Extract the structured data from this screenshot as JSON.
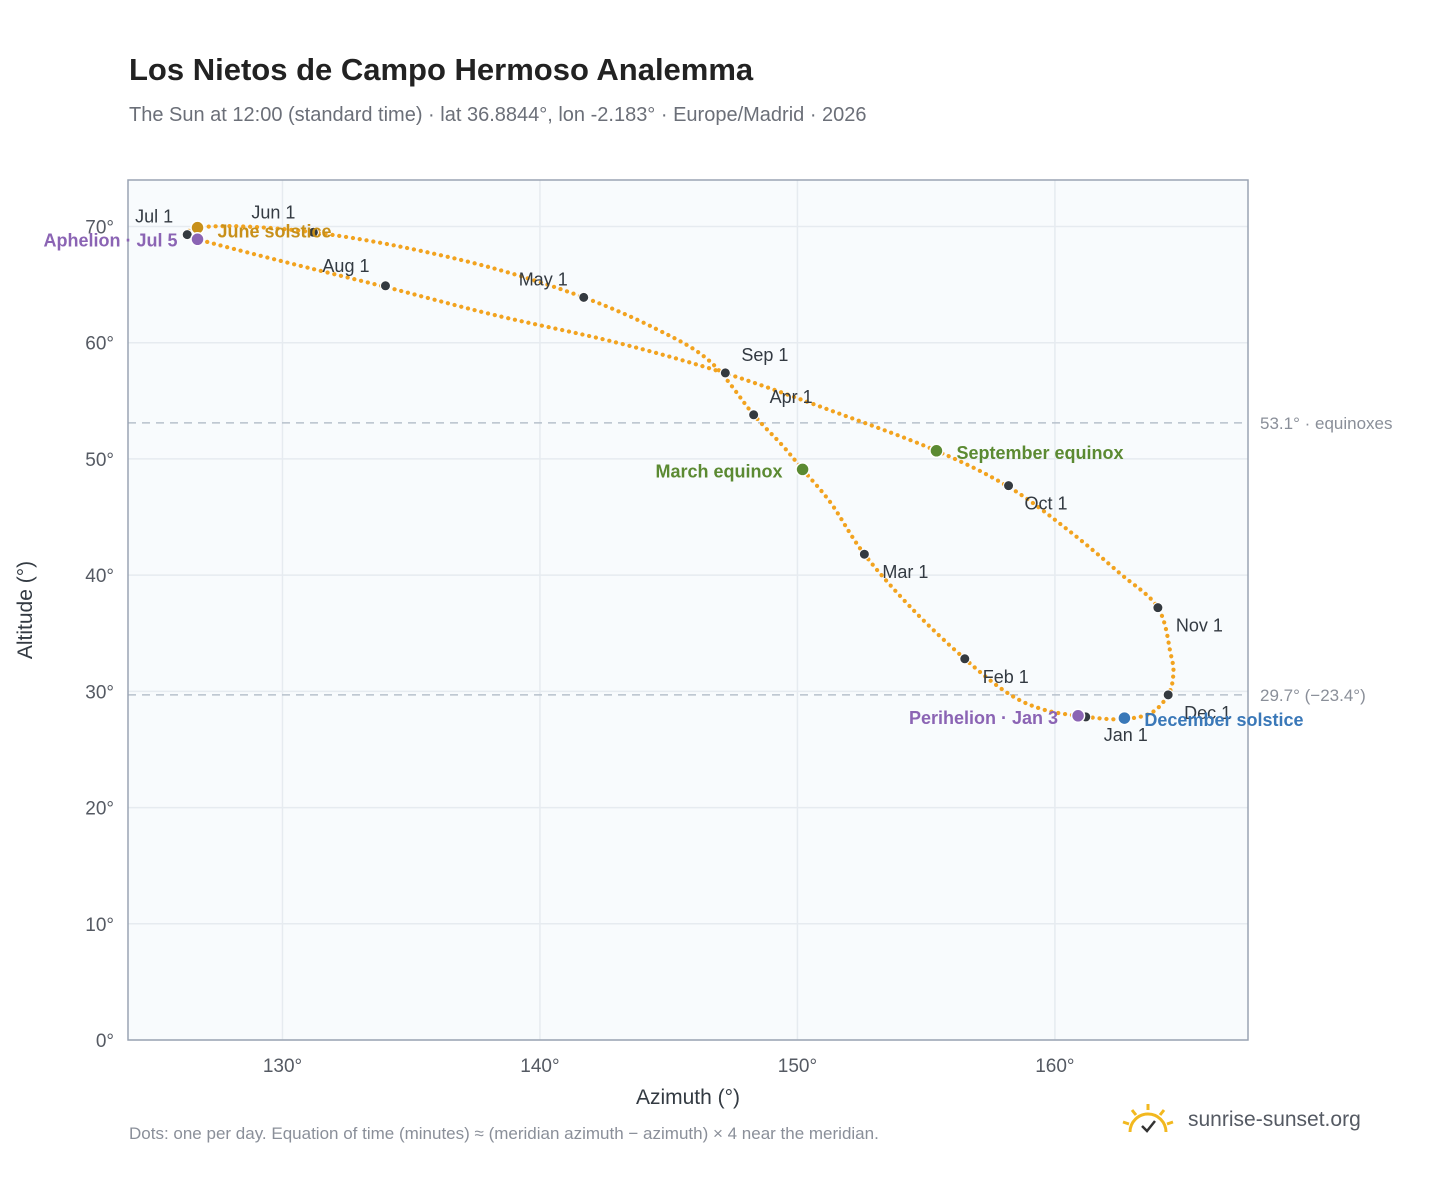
{
  "header": {
    "title": "Los Nietos de Campo Hermoso Analemma",
    "subtitle": "The Sun at 12:00 (standard time) · lat 36.8844°, lon -2.183° · Europe/Madrid · 2026"
  },
  "footer": {
    "note": "Dots: one per day. Equation of time (minutes) ≈ (meridian azimuth − azimuth) × 4 near the meridian.",
    "brand": "sunrise-sunset.org"
  },
  "chart_data": {
    "type": "scatter",
    "title": "Los Nietos de Campo Hermoso Analemma",
    "xlabel": "Azimuth (°)",
    "ylabel": "Altitude (°)",
    "xlim": [
      124,
      167.5
    ],
    "ylim": [
      0,
      74
    ],
    "xticks": [
      {
        "v": 130,
        "label": "130°"
      },
      {
        "v": 140,
        "label": "140°"
      },
      {
        "v": 150,
        "label": "150°"
      },
      {
        "v": 160,
        "label": "160°"
      }
    ],
    "yticks": [
      {
        "v": 0,
        "label": "0°"
      },
      {
        "v": 10,
        "label": "10°"
      },
      {
        "v": 20,
        "label": "20°"
      },
      {
        "v": 30,
        "label": "30°"
      },
      {
        "v": 40,
        "label": "40°"
      },
      {
        "v": 50,
        "label": "50°"
      },
      {
        "v": 60,
        "label": "60°"
      },
      {
        "v": 70,
        "label": "70°"
      }
    ],
    "grid": true,
    "reference_lines": [
      {
        "y": 53.1,
        "label": "53.1° · equinoxes"
      },
      {
        "y": 29.7,
        "label": "29.7° (−23.4°)"
      }
    ],
    "path": [
      [
        161.2,
        27.8
      ],
      [
        162.5,
        27.6
      ],
      [
        163.7,
        28.1
      ],
      [
        164.4,
        29.7
      ],
      [
        164.6,
        31.5
      ],
      [
        164.5,
        33.2
      ],
      [
        164.0,
        37.2
      ],
      [
        162.5,
        40.2
      ],
      [
        160.5,
        43.9
      ],
      [
        158.2,
        47.6
      ],
      [
        155.4,
        50.7
      ],
      [
        151.5,
        54.0
      ],
      [
        147.3,
        57.3
      ],
      [
        143.0,
        60.0
      ],
      [
        138.2,
        62.4
      ],
      [
        134.0,
        64.8
      ],
      [
        130.0,
        67.0
      ],
      [
        126.7,
        68.9
      ],
      [
        126.3,
        69.3
      ],
      [
        126.7,
        69.9
      ],
      [
        128.5,
        70.0
      ],
      [
        131.2,
        69.5
      ],
      [
        134.5,
        68.3
      ],
      [
        138.2,
        66.4
      ],
      [
        141.7,
        63.9
      ],
      [
        144.5,
        61.2
      ],
      [
        146.6,
        58.4
      ],
      [
        148.3,
        53.8
      ],
      [
        149.4,
        51.2
      ],
      [
        150.2,
        49.1
      ],
      [
        151.3,
        46.2
      ],
      [
        152.6,
        41.8
      ],
      [
        154.5,
        37.0
      ],
      [
        156.5,
        32.8
      ],
      [
        158.2,
        29.8
      ],
      [
        159.6,
        28.4
      ],
      [
        161.2,
        27.8
      ]
    ],
    "months": [
      {
        "label": "Jan 1",
        "x": 161.2,
        "y": 27.8
      },
      {
        "label": "Feb 1",
        "x": 156.5,
        "y": 32.8
      },
      {
        "label": "Mar 1",
        "x": 152.6,
        "y": 41.8
      },
      {
        "label": "Apr 1",
        "x": 148.3,
        "y": 53.8
      },
      {
        "label": "May 1",
        "x": 141.7,
        "y": 63.9
      },
      {
        "label": "Jun 1",
        "x": 131.2,
        "y": 69.5
      },
      {
        "label": "Jul 1",
        "x": 126.3,
        "y": 69.3
      },
      {
        "label": "Aug 1",
        "x": 134.0,
        "y": 64.9
      },
      {
        "label": "Sep 1",
        "x": 147.2,
        "y": 57.4
      },
      {
        "label": "Oct 1",
        "x": 158.2,
        "y": 47.7
      },
      {
        "label": "Nov 1",
        "x": 164.0,
        "y": 37.2
      },
      {
        "label": "Dec 1",
        "x": 164.4,
        "y": 29.7
      }
    ],
    "events": [
      {
        "label": "June solstice",
        "x": 126.7,
        "y": 69.9,
        "color": "#c8901a"
      },
      {
        "label": "Aphelion · Jul 5",
        "x": 126.7,
        "y": 68.9,
        "color": "#8b64b4"
      },
      {
        "label": "March equinox",
        "x": 150.2,
        "y": 49.1,
        "color": "#5b8a32"
      },
      {
        "label": "September equinox",
        "x": 155.4,
        "y": 50.7,
        "color": "#5b8a32"
      },
      {
        "label": "Perihelion · Jan 3",
        "x": 160.9,
        "y": 27.9,
        "color": "#8b64b4"
      },
      {
        "label": "December solstice",
        "x": 162.7,
        "y": 27.7,
        "color": "#3a78b8"
      }
    ],
    "colors": {
      "curve": "#f2a31f",
      "month_dot": "#343a40",
      "plot_bg": "#f8fbfd",
      "frame": "#9aa4b3",
      "grid": "#e6ebf0",
      "ref_line": "#b7c1cc"
    }
  }
}
